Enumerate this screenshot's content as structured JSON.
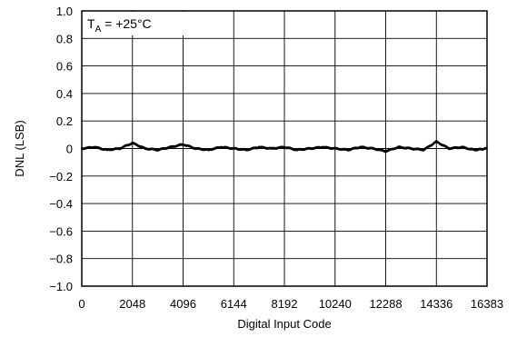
{
  "chart_data": {
    "type": "line",
    "title": "",
    "xlabel": "Digital Input Code",
    "ylabel": "DNL (LSB)",
    "xlim": [
      0,
      16383
    ],
    "ylim": [
      -1.0,
      1.0
    ],
    "x_ticks": [
      0,
      2048,
      4096,
      6144,
      8192,
      10240,
      12288,
      14336,
      16383
    ],
    "x_tick_labels": [
      "0",
      "2048",
      "4096",
      "6144",
      "8192",
      "10240",
      "12288",
      "14336",
      "16383"
    ],
    "y_ticks": [
      1.0,
      0.8,
      0.6,
      0.4,
      0.2,
      0,
      -0.2,
      -0.4,
      -0.6,
      -0.8,
      -1.0
    ],
    "y_tick_labels": [
      "1.0",
      "0.8",
      "0.6",
      "0.4",
      "0.2",
      "0",
      "−0.2",
      "−0.4",
      "−0.6",
      "−0.8",
      "−1.0"
    ],
    "grid": true,
    "annotation": {
      "symbol": "T",
      "subscript": "A",
      "condition": " = +25°C"
    },
    "series": [
      {
        "color": "#000000",
        "x": [
          0,
          512,
          1024,
          1536,
          2048,
          2560,
          3072,
          3584,
          4096,
          4608,
          5120,
          5632,
          6144,
          6656,
          7168,
          7680,
          8192,
          8704,
          9216,
          9728,
          10240,
          10752,
          11264,
          11776,
          12288,
          12800,
          13312,
          13824,
          14336,
          14848,
          15360,
          15872,
          16383
        ],
        "y": [
          0.0,
          0.01,
          -0.01,
          0.0,
          0.04,
          0.0,
          -0.01,
          0.01,
          0.03,
          0.0,
          -0.01,
          0.01,
          0.0,
          -0.01,
          0.01,
          0.0,
          0.01,
          -0.01,
          0.0,
          0.01,
          0.0,
          -0.01,
          0.01,
          0.0,
          -0.02,
          0.01,
          0.0,
          -0.01,
          0.05,
          0.0,
          0.01,
          -0.01,
          0.0
        ]
      }
    ]
  }
}
